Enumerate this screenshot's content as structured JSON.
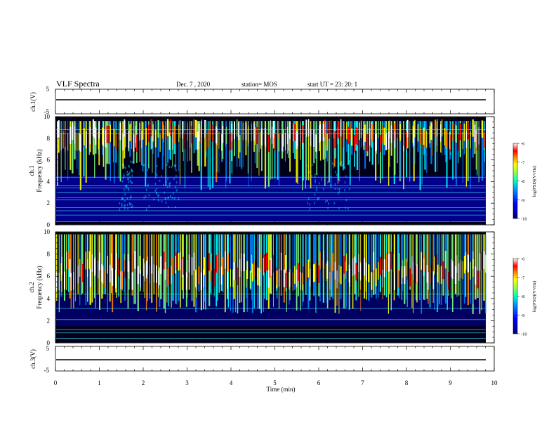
{
  "header": {
    "title": "VLF Spectra",
    "date": "Dec. 7  , 2020",
    "station": "station= MOS",
    "start": "start  UT  =   23: 20: 1"
  },
  "chart_data": [
    {
      "type": "line",
      "panel": "ch1-waveform",
      "ylabel": "ch.1(V)",
      "ylim": [
        -5,
        5
      ],
      "ytick_labels": [
        "5",
        "-5"
      ],
      "x": [
        0,
        9.8
      ],
      "values": [
        0,
        0
      ]
    },
    {
      "type": "heatmap",
      "panel": "ch1-spectrogram",
      "ylabel": "ch.1\nFrequency (kHz)",
      "ylim": [
        0,
        10
      ],
      "xlim": [
        0,
        10
      ],
      "data_end_min": 9.8,
      "ytick_labels": [
        "0",
        "2",
        "4",
        "6",
        "8",
        "10"
      ],
      "colorbar": {
        "label": "log(PSD)(V²/Hz)",
        "range": [
          -10,
          -6
        ],
        "tick_labels": [
          "-6",
          "-7",
          "-8",
          "-9",
          "-10"
        ]
      }
    },
    {
      "type": "heatmap",
      "panel": "ch2-spectrogram",
      "ylabel": "ch.2\nFrequency (kHz)",
      "ylim": [
        0,
        10
      ],
      "xlim": [
        0,
        10
      ],
      "data_end_min": 9.8,
      "ytick_labels": [
        "0",
        "2",
        "4",
        "6",
        "8",
        "10"
      ],
      "colorbar": {
        "label": "log(PSD)(V²/Hz)",
        "range": [
          -10,
          -6
        ],
        "tick_labels": [
          "-6",
          "-7",
          "-8",
          "-9",
          "-10"
        ]
      }
    },
    {
      "type": "line",
      "panel": "ch3-waveform",
      "ylabel": "ch.3(V)",
      "ylim": [
        -5,
        5
      ],
      "ytick_labels": [
        "5",
        "-5"
      ],
      "x": [
        0,
        9.8
      ],
      "values": [
        0,
        0
      ]
    }
  ],
  "xaxis": {
    "label": "Time  (min)",
    "range": [
      0,
      10
    ],
    "tick_labels": [
      "0",
      "1",
      "2",
      "3",
      "4",
      "5",
      "6",
      "7",
      "8",
      "9",
      "10"
    ]
  },
  "colors": {
    "colormap": [
      "#00007f",
      "#0000ff",
      "#0080ff",
      "#00ffff",
      "#80ff80",
      "#ffff00",
      "#ff8000",
      "#ff0000",
      "#ffffff"
    ],
    "background": "#00001a",
    "trace": "#000000"
  }
}
